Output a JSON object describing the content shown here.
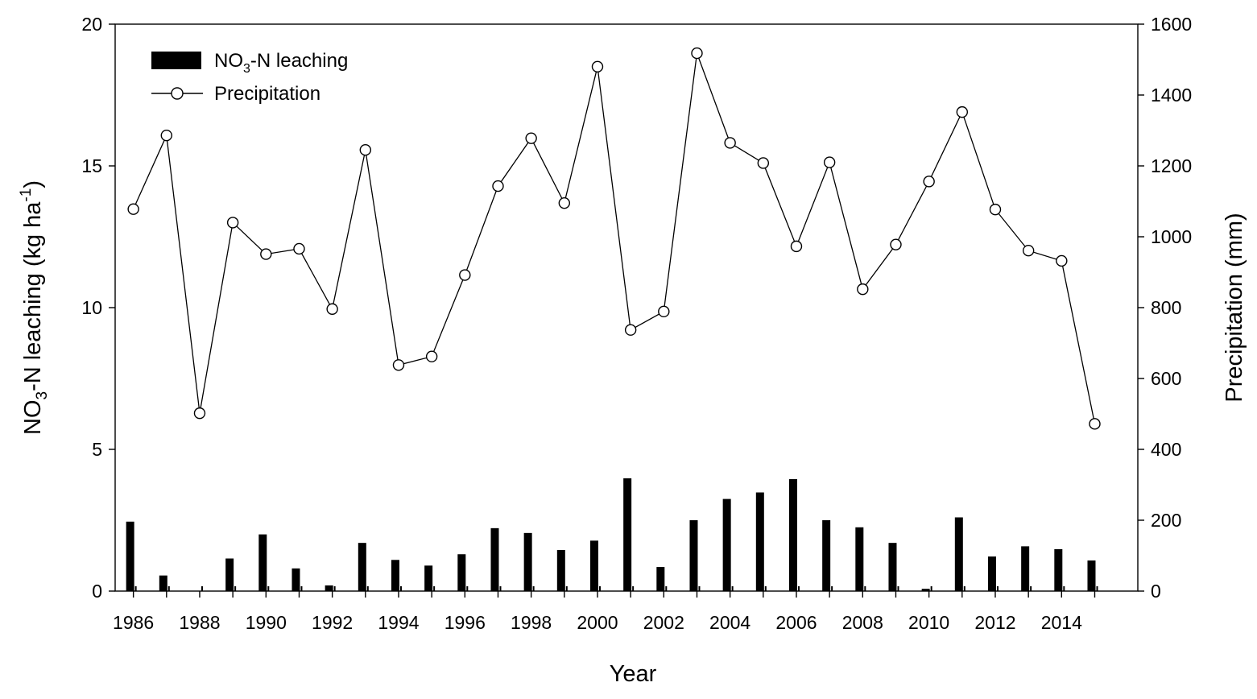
{
  "chart_data": {
    "type": "bar+line",
    "x": [
      1986,
      1987,
      1988,
      1989,
      1990,
      1991,
      1992,
      1993,
      1994,
      1995,
      1996,
      1997,
      1998,
      1999,
      2000,
      2001,
      2002,
      2003,
      2004,
      2005,
      2006,
      2007,
      2008,
      2009,
      2010,
      2011,
      2012,
      2013,
      2014,
      2015
    ],
    "xticks": [
      1986,
      1988,
      1990,
      1992,
      1994,
      1996,
      1998,
      2000,
      2002,
      2004,
      2006,
      2008,
      2010,
      2012,
      2014
    ],
    "series": [
      {
        "name_main": "NO",
        "name_sub": "3",
        "name_rest": "-N leaching",
        "type": "bar",
        "axis": "left",
        "color": "#000000",
        "values": [
          2.45,
          0.55,
          0.0,
          1.15,
          2.0,
          0.8,
          0.2,
          1.7,
          1.1,
          0.9,
          1.3,
          2.22,
          2.05,
          1.45,
          1.78,
          3.98,
          0.85,
          2.5,
          3.25,
          3.48,
          3.95,
          2.5,
          2.25,
          1.7,
          0.08,
          2.6,
          1.22,
          1.58,
          1.48,
          1.08
        ]
      },
      {
        "name": "Precipitation",
        "type": "line",
        "marker": "open-circle",
        "axis": "right",
        "color": "#000000",
        "values": [
          1078,
          1286,
          502,
          1040,
          951,
          966,
          796,
          1245,
          638,
          662,
          892,
          1143,
          1278,
          1095,
          1480,
          737,
          789,
          1518,
          1265,
          1208,
          973,
          1210,
          852,
          978,
          1156,
          1352,
          1077,
          961,
          932,
          472
        ]
      }
    ],
    "ylabel_left": {
      "main": "NO",
      "sub": "3",
      "mid": "-N leaching (kg ha",
      "sup": "-1",
      "end": ")"
    },
    "ylabel_right": "Precipitation (mm)",
    "xlabel": "Year",
    "ylim_left": [
      0,
      20
    ],
    "yticks_left": [
      0,
      5,
      10,
      15,
      20
    ],
    "ylim_right": [
      0,
      1600
    ],
    "yticks_right": [
      0,
      200,
      400,
      600,
      800,
      1000,
      1200,
      1400,
      1600
    ],
    "legend_position": "top-left",
    "grid": false
  }
}
